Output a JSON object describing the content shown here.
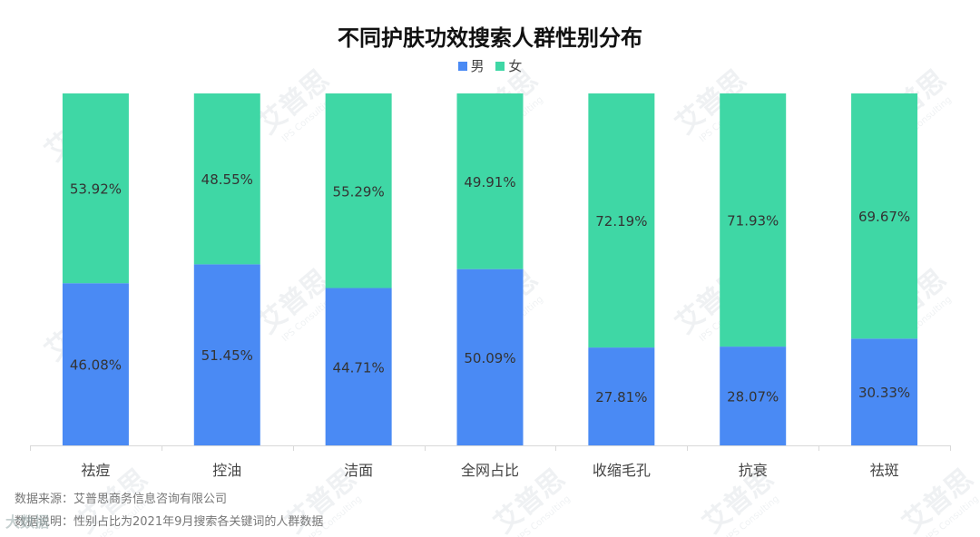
{
  "chart_data": {
    "type": "bar",
    "stacked": true,
    "title": "不同护肤功效搜索人群性别分布",
    "categories": [
      "祛痘",
      "控油",
      "洁面",
      "全网占比",
      "收缩毛孔",
      "抗衰",
      "祛斑"
    ],
    "series": [
      {
        "name": "男",
        "color": "#4a8af4",
        "values": [
          46.08,
          51.45,
          44.71,
          50.09,
          27.81,
          28.07,
          30.33
        ]
      },
      {
        "name": "女",
        "color": "#3fd7a5",
        "values": [
          53.92,
          48.55,
          55.29,
          49.91,
          72.19,
          71.93,
          69.67
        ]
      }
    ],
    "value_suffix": "%",
    "ylim": [
      0,
      100
    ],
    "grid": false,
    "legend": "top-center"
  },
  "footnotes": {
    "source": "数据来源：艾普思商务信息咨询有限公司",
    "note": "数据说明：性别占比为2021年9月搜索各关键词的人群数据"
  },
  "watermark": {
    "brand": "艾普思",
    "sub": "IPS Consulting",
    "corner": "大数据"
  }
}
